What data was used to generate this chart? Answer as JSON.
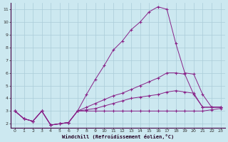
{
  "xlabel": "Windchill (Refroidissement éolien,°C)",
  "bg_color": "#cce8f0",
  "grid_color": "#aaccd8",
  "line_color": "#882288",
  "xlim": [
    -0.5,
    23.5
  ],
  "ylim": [
    1.7,
    11.5
  ],
  "yticks": [
    2,
    3,
    4,
    5,
    6,
    7,
    8,
    9,
    10,
    11
  ],
  "xticks": [
    0,
    1,
    2,
    3,
    4,
    5,
    6,
    7,
    8,
    9,
    10,
    11,
    12,
    13,
    14,
    15,
    16,
    17,
    18,
    19,
    20,
    21,
    22,
    23
  ],
  "line1_x": [
    0,
    1,
    2,
    3,
    4,
    5,
    6,
    7,
    8,
    9,
    10,
    11,
    12,
    13,
    14,
    15,
    16,
    17,
    18,
    19,
    20,
    21,
    22,
    23
  ],
  "line1_y": [
    3.0,
    2.4,
    2.2,
    3.0,
    1.9,
    2.0,
    2.1,
    3.0,
    4.3,
    5.5,
    6.6,
    7.8,
    8.5,
    9.4,
    10.0,
    10.8,
    11.2,
    11.0,
    8.3,
    6.0,
    5.9,
    4.3,
    3.3,
    3.3
  ],
  "line2_x": [
    0,
    1,
    2,
    3,
    4,
    5,
    6,
    7,
    8,
    9,
    10,
    11,
    12,
    13,
    14,
    15,
    16,
    17,
    18,
    19,
    20,
    21,
    22,
    23
  ],
  "line2_y": [
    3.0,
    2.4,
    2.2,
    3.0,
    1.9,
    2.0,
    2.1,
    3.0,
    3.3,
    3.6,
    3.9,
    4.2,
    4.4,
    4.7,
    5.0,
    5.3,
    5.6,
    6.0,
    6.0,
    5.9,
    4.3,
    3.3,
    3.3,
    3.3
  ],
  "line3_x": [
    0,
    1,
    2,
    3,
    4,
    5,
    6,
    7,
    8,
    9,
    10,
    11,
    12,
    13,
    14,
    15,
    16,
    17,
    18,
    19,
    20,
    21,
    22,
    23
  ],
  "line3_y": [
    3.0,
    2.4,
    2.2,
    3.0,
    1.9,
    2.0,
    2.1,
    3.0,
    3.1,
    3.2,
    3.4,
    3.6,
    3.8,
    4.0,
    4.1,
    4.2,
    4.3,
    4.5,
    4.6,
    4.5,
    4.4,
    3.3,
    3.3,
    3.3
  ],
  "line4_x": [
    0,
    1,
    2,
    3,
    4,
    5,
    6,
    7,
    8,
    9,
    10,
    11,
    12,
    13,
    14,
    15,
    16,
    17,
    18,
    19,
    20,
    21,
    22,
    23
  ],
  "line4_y": [
    3.0,
    2.4,
    2.2,
    3.0,
    1.9,
    2.0,
    2.1,
    3.0,
    3.0,
    3.0,
    3.0,
    3.0,
    3.0,
    3.0,
    3.0,
    3.0,
    3.0,
    3.0,
    3.0,
    3.0,
    3.0,
    3.0,
    3.1,
    3.2
  ]
}
